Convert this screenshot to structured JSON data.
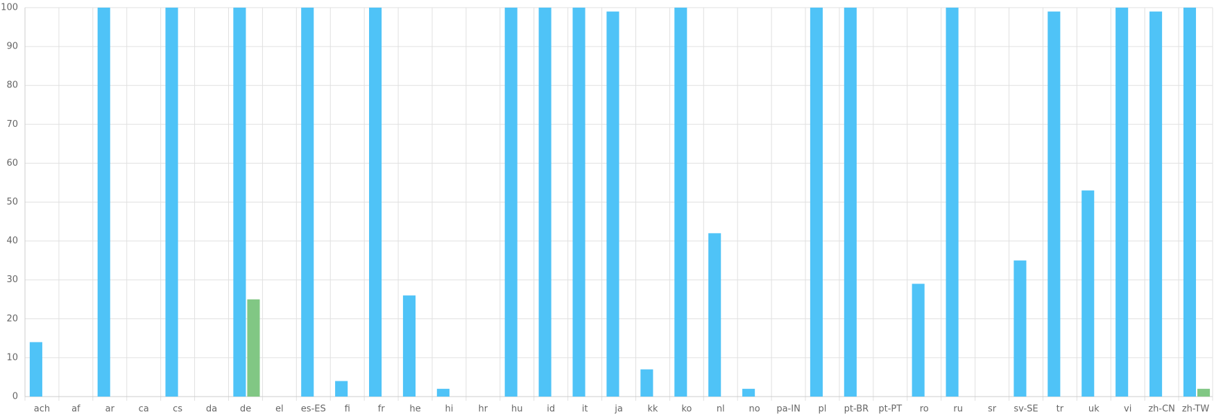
{
  "chart_data": {
    "type": "bar",
    "categories": [
      "ach",
      "af",
      "ar",
      "ca",
      "cs",
      "da",
      "de",
      "el",
      "es-ES",
      "fi",
      "fr",
      "he",
      "hi",
      "hr",
      "hu",
      "id",
      "it",
      "ja",
      "kk",
      "ko",
      "nl",
      "no",
      "pa-IN",
      "pl",
      "pt-BR",
      "pt-PT",
      "ro",
      "ru",
      "sr",
      "sv-SE",
      "tr",
      "uk",
      "vi",
      "zh-CN",
      "zh-TW"
    ],
    "series": [
      {
        "color": "#4fc3f7",
        "values": [
          14,
          0,
          100,
          0,
          100,
          0,
          100,
          0,
          100,
          4,
          100,
          26,
          2,
          0,
          100,
          100,
          100,
          99,
          7,
          100,
          42,
          2,
          0,
          100,
          100,
          0,
          29,
          100,
          0,
          35,
          99,
          53,
          100,
          99,
          100
        ]
      },
      {
        "color": "#81c784",
        "values": [
          0,
          0,
          0,
          0,
          0,
          0,
          25,
          0,
          0,
          0,
          0,
          0,
          0,
          0,
          0,
          0,
          0,
          0,
          0,
          0,
          0,
          0,
          0,
          0,
          0,
          0,
          0,
          0,
          0,
          0,
          0,
          0,
          0,
          0,
          2
        ]
      }
    ],
    "ylim": [
      0,
      100
    ],
    "yticks": [
      0,
      10,
      20,
      30,
      40,
      50,
      60,
      70,
      80,
      90,
      100
    ],
    "grid": true
  }
}
